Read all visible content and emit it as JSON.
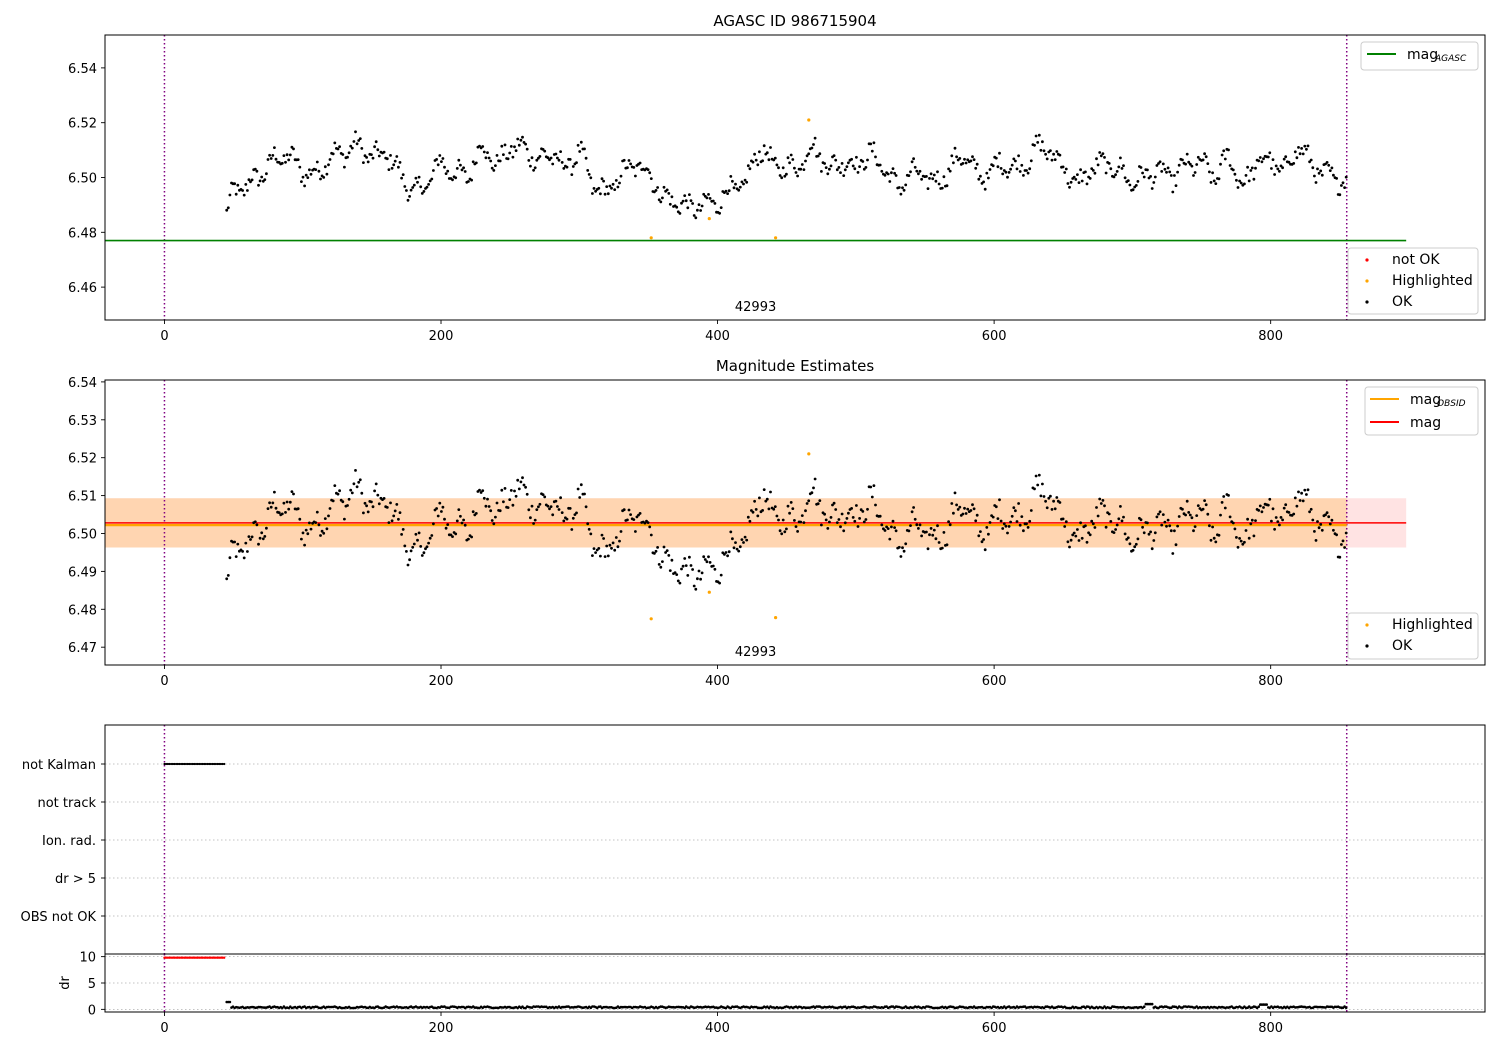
{
  "chart_data": [
    {
      "type": "scatter",
      "title": "AGASC ID 986715904",
      "xlim": [
        -43,
        955
      ],
      "ylim": [
        6.448,
        6.552
      ],
      "yticks": [
        6.46,
        6.48,
        6.5,
        6.52,
        6.54
      ],
      "xticks": [
        0,
        200,
        400,
        600,
        800
      ],
      "annotation": "42993",
      "reference_lines": [
        {
          "name": "mag_AGASC",
          "label_main": "mag",
          "label_sub": "AGASC",
          "y": 6.477,
          "x_range": [
            -43,
            898
          ],
          "color": "#008000"
        }
      ],
      "vlines": [
        0,
        855
      ],
      "vline_color": "#800080",
      "legend_lines": {
        "placement": "upper right",
        "entries": [
          {
            "main": "mag",
            "sub": "AGASC",
            "color": "#008000"
          }
        ]
      },
      "legend_points": {
        "placement": "lower right",
        "entries": [
          {
            "label": "not OK",
            "color": "#ff0000"
          },
          {
            "label": "Highlighted",
            "color": "#ffa500"
          },
          {
            "label": "OK",
            "color": "#000000"
          }
        ]
      },
      "series": [
        {
          "name": "OK",
          "color": "#000000",
          "x_start": 45,
          "x_end": 855,
          "anchors_x": [
            45,
            50,
            60,
            70,
            80,
            90,
            100,
            110,
            120,
            130,
            140,
            150,
            160,
            170,
            180,
            190,
            200,
            210,
            220,
            230,
            240,
            250,
            260,
            270,
            280,
            290,
            300,
            310,
            320,
            330,
            340,
            350,
            360,
            370,
            380,
            390,
            400,
            410,
            420,
            430,
            440,
            450,
            460,
            470,
            480,
            490,
            500,
            510,
            520,
            530,
            540,
            550,
            560,
            570,
            580,
            590,
            600,
            610,
            620,
            630,
            640,
            650,
            660,
            670,
            680,
            690,
            700,
            710,
            720,
            730,
            740,
            750,
            760,
            770,
            780,
            790,
            800,
            810,
            820,
            830,
            840,
            855
          ],
          "anchors_y": [
            6.487,
            6.495,
            6.497,
            6.501,
            6.507,
            6.508,
            6.502,
            6.501,
            6.508,
            6.509,
            6.512,
            6.507,
            6.509,
            6.502,
            6.494,
            6.498,
            6.506,
            6.501,
            6.501,
            6.512,
            6.504,
            6.511,
            6.511,
            6.506,
            6.509,
            6.503,
            6.51,
            6.497,
            6.494,
            6.501,
            6.505,
            6.502,
            6.493,
            6.491,
            6.489,
            6.49,
            6.491,
            6.496,
            6.497,
            6.511,
            6.505,
            6.503,
            6.505,
            6.512,
            6.503,
            6.506,
            6.504,
            6.509,
            6.504,
            6.496,
            6.502,
            6.5,
            6.498,
            6.505,
            6.508,
            6.499,
            6.504,
            6.505,
            6.503,
            6.511,
            6.51,
            6.504,
            6.497,
            6.503,
            6.505,
            6.503,
            6.498,
            6.501,
            6.502,
            6.5,
            6.505,
            6.505,
            6.5,
            6.508,
            6.496,
            6.506,
            6.506,
            6.502,
            6.512,
            6.504,
            6.501,
            6.498
          ],
          "point_step": 1.15
        },
        {
          "name": "Highlighted",
          "color": "#ffa500",
          "x": [
            352,
            394,
            442,
            466
          ],
          "y": [
            6.478,
            6.485,
            6.478,
            6.521
          ]
        }
      ]
    },
    {
      "type": "scatter",
      "title": "Magnitude Estimates",
      "xlim": [
        -43,
        955
      ],
      "ylim": [
        6.4653,
        6.5405
      ],
      "yticks": [
        6.47,
        6.48,
        6.49,
        6.5,
        6.51,
        6.52,
        6.53,
        6.54
      ],
      "xticks": [
        0,
        200,
        400,
        600,
        800
      ],
      "annotation": "42993",
      "bands": [
        {
          "y": [
            6.4963,
            6.5093
          ],
          "x_range": [
            -43,
            898
          ],
          "color": "#ff0000",
          "opacity": 0.11
        },
        {
          "y": [
            6.4963,
            6.5093
          ],
          "x_range": [
            -43,
            855
          ],
          "color": "#ffa500",
          "opacity": 0.22
        }
      ],
      "reference_lines": [
        {
          "name": "mag_OBSID",
          "y": 6.5022,
          "x_range": [
            -43,
            855
          ],
          "color": "#ffa500"
        },
        {
          "name": "mag",
          "y": 6.5028,
          "x_range": [
            -43,
            898
          ],
          "color": "#ff0000"
        }
      ],
      "vlines": [
        0,
        855
      ],
      "vline_color": "#800080",
      "legend_lines": {
        "placement": "upper right",
        "entries": [
          {
            "main": "mag",
            "sub": "OBSID",
            "color": "#ffa500"
          },
          {
            "main": "mag",
            "sub": "",
            "color": "#ff0000"
          }
        ]
      },
      "legend_points": {
        "placement": "lower right",
        "entries": [
          {
            "label": "Highlighted",
            "color": "#ffa500"
          },
          {
            "label": "OK",
            "color": "#000000"
          }
        ]
      },
      "series": [
        {
          "name": "OK",
          "color": "#000000",
          "same_as_panel": 0
        },
        {
          "name": "Highlighted",
          "color": "#ffa500",
          "x": [
            352,
            394,
            442,
            466
          ],
          "y": [
            6.4775,
            6.4845,
            6.4778,
            6.521
          ]
        }
      ]
    },
    {
      "type": "scatter",
      "title": "",
      "xlim": [
        -43,
        955
      ],
      "categories": [
        "not Kalman",
        "not track",
        "Ion. rad.",
        "dr > 5",
        "OBS not OK"
      ],
      "flags": [
        {
          "category": "not Kalman",
          "x_range": [
            0,
            44
          ],
          "color": "#000000"
        }
      ],
      "vlines": [
        0,
        855
      ],
      "vline_color": "#800080"
    },
    {
      "type": "scatter",
      "title": "",
      "xlim": [
        -43,
        955
      ],
      "ylim": [
        -0.5,
        10.5
      ],
      "yticks": [
        0,
        5,
        10
      ],
      "xticks": [
        0,
        200,
        400,
        600,
        800
      ],
      "ylabel": "dr",
      "vlines": [
        0,
        855
      ],
      "vline_color": "#800080",
      "series": [
        {
          "name": "dr capped",
          "color": "#ff0000",
          "x_range": [
            0,
            44
          ],
          "y": 9.8,
          "step": 1.2
        },
        {
          "name": "dr",
          "color": "#000000",
          "x_range": [
            45,
            855
          ],
          "y_typical": 0.4,
          "step": 1.15,
          "bumps": [
            {
              "x": 45,
              "y": 1.4
            },
            {
              "x": 712,
              "y": 1.0
            },
            {
              "x": 795,
              "y": 0.9
            }
          ]
        }
      ]
    }
  ]
}
